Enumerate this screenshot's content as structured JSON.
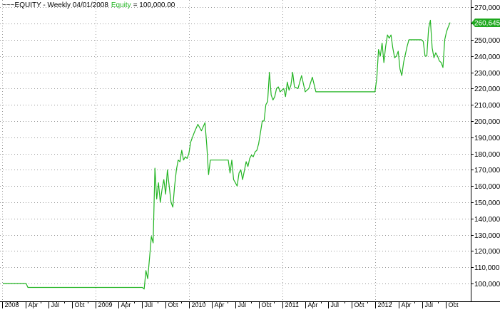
{
  "header": {
    "prefix": "~~~EQUITY - Weekly 04/01/2008",
    "series_label": "Equity",
    "value_text": "= 100,000.00"
  },
  "colors": {
    "equity_line": "#22b422",
    "value_tag_bg": "#1ea81e",
    "grid_dots": "#9a9a9a",
    "axis": "#000000"
  },
  "chart_data": {
    "type": "line",
    "title": "",
    "xlabel": "",
    "ylabel": "",
    "ylim": [
      93000,
      271000
    ],
    "grid": true,
    "x_tick_labels": [
      "2008",
      "Apr",
      "Jul",
      "Oct",
      "2009",
      "Apr",
      "Jul",
      "Oct",
      "2010",
      "Apr",
      "Jul",
      "Oct",
      "2011",
      "Apr",
      "Jul",
      "Oct",
      "2012",
      "Apr",
      "Jul",
      "Oct"
    ],
    "year_tick_labels": [
      "2008",
      "2009",
      "2010",
      "2011",
      "2012"
    ],
    "y_ticks": [
      100000,
      110000,
      120000,
      130000,
      140000,
      150000,
      160000,
      170000,
      180000,
      190000,
      200000,
      210000,
      220000,
      230000,
      240000,
      250000,
      260000,
      270000
    ],
    "y_tick_labels": [
      "100,000",
      "110,000",
      "120,000",
      "130,000",
      "140,000",
      "150,000",
      "160,000",
      "170,000",
      "180,000",
      "190,000",
      "200,000",
      "210,000",
      "220,000",
      "230,000",
      "240,000",
      "250,000",
      "260,000",
      "270,000"
    ],
    "last_value_label": "260,645",
    "last_value": 260645,
    "series": [
      {
        "x": [
          "2008-01-04",
          "2008-03-14",
          "2008-04-04",
          "2008-04-11",
          "2008-07-01",
          "2009-01-02",
          "2009-04-01",
          "2009-07-03",
          "2009-07-10",
          "2009-07-17",
          "2009-07-24",
          "2009-07-31",
          "2009-08-07",
          "2009-08-14",
          "2009-08-21",
          "2009-08-28",
          "2009-09-04",
          "2009-09-11",
          "2009-09-18",
          "2009-09-25",
          "2009-10-02",
          "2009-10-09",
          "2009-10-16",
          "2009-10-23",
          "2009-10-30",
          "2009-11-06",
          "2009-11-13",
          "2009-11-20",
          "2009-11-27",
          "2009-12-04",
          "2009-12-11",
          "2009-12-18",
          "2009-12-25",
          "2010-01-01",
          "2010-01-08",
          "2010-01-15",
          "2010-01-22",
          "2010-02-05",
          "2010-02-19",
          "2010-03-05",
          "2010-03-12",
          "2010-03-19",
          "2010-03-26",
          "2010-04-02",
          "2010-04-16",
          "2010-05-07",
          "2010-06-04",
          "2010-06-11",
          "2010-06-18",
          "2010-06-25",
          "2010-07-02",
          "2010-07-09",
          "2010-07-16",
          "2010-07-23",
          "2010-07-30",
          "2010-08-13",
          "2010-08-20",
          "2010-08-27",
          "2010-09-03",
          "2010-09-10",
          "2010-09-17",
          "2010-09-24",
          "2010-10-01",
          "2010-10-08",
          "2010-10-15",
          "2010-10-22",
          "2010-10-29",
          "2010-11-05",
          "2010-11-12",
          "2010-11-19",
          "2010-11-26",
          "2010-12-03",
          "2010-12-10",
          "2010-12-17",
          "2010-12-24",
          "2011-01-07",
          "2011-01-14",
          "2011-01-21",
          "2011-01-28",
          "2011-02-04",
          "2011-02-11",
          "2011-02-18",
          "2011-03-04",
          "2011-03-18",
          "2011-04-01",
          "2011-04-15",
          "2011-04-29",
          "2011-05-13",
          "2011-05-27",
          "2011-06-10",
          "2011-06-17",
          "2011-06-24",
          "2011-07-01",
          "2011-07-15",
          "2011-07-22",
          "2011-07-29",
          "2011-09-30",
          "2011-12-16",
          "2011-12-30",
          "2012-01-06",
          "2012-01-13",
          "2012-01-20",
          "2012-01-27",
          "2012-02-03",
          "2012-02-10",
          "2012-02-17",
          "2012-02-24",
          "2012-03-02",
          "2012-03-09",
          "2012-03-16",
          "2012-03-23",
          "2012-03-30",
          "2012-04-06",
          "2012-04-13",
          "2012-04-20",
          "2012-04-27",
          "2012-05-04",
          "2012-05-11",
          "2012-06-01",
          "2012-06-15",
          "2012-06-29",
          "2012-07-06",
          "2012-07-13",
          "2012-07-20",
          "2012-07-27",
          "2012-08-03",
          "2012-08-10",
          "2012-08-17",
          "2012-08-24",
          "2012-08-31",
          "2012-09-07",
          "2012-09-14",
          "2012-09-21",
          "2012-09-28",
          "2012-10-05",
          "2012-10-12",
          "2012-10-19"
        ],
        "y": [
          100000,
          100000,
          100000,
          97600,
          97600,
          97600,
          97600,
          97600,
          96600,
          108000,
          103000,
          116000,
          129000,
          125000,
          171000,
          152000,
          162000,
          150000,
          158000,
          164000,
          155000,
          170000,
          160000,
          150000,
          147000,
          160000,
          170000,
          176000,
          175000,
          182000,
          176000,
          178000,
          177000,
          180000,
          187000,
          190000,
          193000,
          198000,
          194000,
          199000,
          185000,
          167000,
          176000,
          176000,
          176000,
          176000,
          176000,
          168000,
          176000,
          164000,
          162000,
          160000,
          168000,
          170000,
          164000,
          175000,
          172000,
          177000,
          179000,
          178000,
          181000,
          182000,
          186000,
          193000,
          200000,
          200000,
          210000,
          212000,
          230000,
          216000,
          213000,
          215000,
          220000,
          221000,
          218000,
          220000,
          215000,
          224000,
          219000,
          222000,
          230000,
          221000,
          220000,
          228000,
          218000,
          220000,
          227000,
          218000,
          218000,
          218000,
          218000,
          218000,
          218000,
          218000,
          218000,
          218000,
          218000,
          218000,
          218000,
          226000,
          244000,
          240000,
          248000,
          236000,
          246000,
          253000,
          251000,
          253000,
          245000,
          239000,
          240000,
          243000,
          232000,
          228000,
          236000,
          241000,
          246000,
          250000,
          250000,
          250000,
          250000,
          249000,
          240000,
          240000,
          257000,
          262000,
          245000,
          239000,
          242000,
          240000,
          237000,
          236000,
          233000,
          250000,
          255000,
          258000,
          260645
        ]
      }
    ]
  }
}
